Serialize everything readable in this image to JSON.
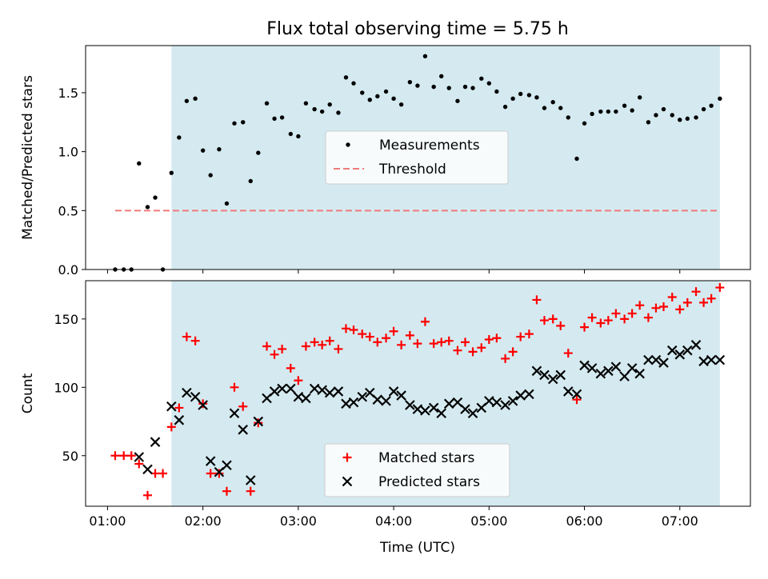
{
  "figure": {
    "title": "Flux total observing time = 5.75 h",
    "xlabel": "Time (UTC)",
    "x_ticks": [
      {
        "value": 1,
        "label": "01:00"
      },
      {
        "value": 2,
        "label": "02:00"
      },
      {
        "value": 3,
        "label": "03:00"
      },
      {
        "value": 4,
        "label": "04:00"
      },
      {
        "value": 5,
        "label": "05:00"
      },
      {
        "value": 6,
        "label": "06:00"
      },
      {
        "value": 7,
        "label": "07:00"
      }
    ],
    "xlim": [
      0.77,
      7.74
    ],
    "shade_range": [
      1.67,
      7.42
    ],
    "shade_color": "#d4eaf0"
  },
  "chart_data": [
    {
      "type": "scatter",
      "ylabel": "Matched/Predicted stars",
      "ylim": [
        0,
        1.9
      ],
      "y_ticks": [
        {
          "value": 0,
          "label": "0.0"
        },
        {
          "value": 0.5,
          "label": "0.5"
        },
        {
          "value": 1.0,
          "label": "1.0"
        },
        {
          "value": 1.5,
          "label": "1.5"
        }
      ],
      "legend": {
        "position": "center",
        "items": [
          {
            "label": "Measurements",
            "marker": "dot",
            "color": "#000000"
          },
          {
            "label": "Threshold",
            "marker": "dashed-line",
            "color": "#f07a7a"
          }
        ]
      },
      "threshold": {
        "value": 0.5,
        "x_range": [
          1.08,
          7.42
        ],
        "color": "#f07a7a"
      },
      "series": [
        {
          "name": "Measurements",
          "color": "#000000",
          "x": [
            1.08,
            1.17,
            1.25,
            1.33,
            1.42,
            1.5,
            1.58,
            1.67,
            1.75,
            1.83,
            1.92,
            2.0,
            2.08,
            2.17,
            2.25,
            2.33,
            2.42,
            2.5,
            2.58,
            2.67,
            2.75,
            2.83,
            2.92,
            3.0,
            3.08,
            3.17,
            3.25,
            3.33,
            3.42,
            3.5,
            3.58,
            3.67,
            3.75,
            3.83,
            3.92,
            4.0,
            4.08,
            4.17,
            4.25,
            4.33,
            4.42,
            4.5,
            4.58,
            4.67,
            4.75,
            4.83,
            4.92,
            5.0,
            5.08,
            5.17,
            5.25,
            5.33,
            5.42,
            5.5,
            5.58,
            5.67,
            5.75,
            5.83,
            5.92,
            6.0,
            6.08,
            6.17,
            6.25,
            6.33,
            6.42,
            6.5,
            6.58,
            6.67,
            6.75,
            6.83,
            6.92,
            7.0,
            7.08,
            7.17,
            7.25,
            7.33,
            7.42
          ],
          "y": [
            0.0,
            0.0,
            0.0,
            0.9,
            0.53,
            0.61,
            0.0,
            0.82,
            1.12,
            1.43,
            1.45,
            1.01,
            0.8,
            1.02,
            0.56,
            1.24,
            1.25,
            0.75,
            0.99,
            1.41,
            1.28,
            1.29,
            1.15,
            1.13,
            1.41,
            1.36,
            1.34,
            1.4,
            1.33,
            1.63,
            1.58,
            1.5,
            1.44,
            1.47,
            1.51,
            1.45,
            1.4,
            1.59,
            1.56,
            1.81,
            1.55,
            1.64,
            1.54,
            1.43,
            1.55,
            1.54,
            1.62,
            1.58,
            1.51,
            1.38,
            1.45,
            1.49,
            1.48,
            1.46,
            1.37,
            1.42,
            1.37,
            1.29,
            0.94,
            1.24,
            1.32,
            1.34,
            1.34,
            1.34,
            1.39,
            1.35,
            1.46,
            1.25,
            1.31,
            1.36,
            1.31,
            1.27,
            1.28,
            1.29,
            1.36,
            1.39,
            1.45
          ]
        }
      ]
    },
    {
      "type": "scatter",
      "ylabel": "Count",
      "ylim": [
        13,
        178
      ],
      "y_ticks": [
        {
          "value": 50,
          "label": "50"
        },
        {
          "value": 100,
          "label": "100"
        },
        {
          "value": 150,
          "label": "150"
        }
      ],
      "legend": {
        "position": "lower center",
        "items": [
          {
            "label": "Matched stars",
            "marker": "plus",
            "color": "#ff0000"
          },
          {
            "label": "Predicted stars",
            "marker": "cross",
            "color": "#000000"
          }
        ]
      },
      "series": [
        {
          "name": "Matched stars",
          "color": "#ff0000",
          "x": [
            1.08,
            1.17,
            1.25,
            1.33,
            1.42,
            1.5,
            1.58,
            1.67,
            1.75,
            1.83,
            1.92,
            2.0,
            2.08,
            2.17,
            2.25,
            2.33,
            2.42,
            2.5,
            2.58,
            2.67,
            2.75,
            2.83,
            2.92,
            3.0,
            3.08,
            3.17,
            3.25,
            3.33,
            3.42,
            3.5,
            3.58,
            3.67,
            3.75,
            3.83,
            3.92,
            4.0,
            4.08,
            4.17,
            4.25,
            4.33,
            4.42,
            4.5,
            4.58,
            4.67,
            4.75,
            4.83,
            4.92,
            5.0,
            5.08,
            5.17,
            5.25,
            5.33,
            5.42,
            5.5,
            5.58,
            5.67,
            5.75,
            5.83,
            5.92,
            6.0,
            6.08,
            6.17,
            6.25,
            6.33,
            6.42,
            6.5,
            6.58,
            6.67,
            6.75,
            6.83,
            6.92,
            7.0,
            7.08,
            7.17,
            7.25,
            7.33,
            7.42
          ],
          "y": [
            50,
            50,
            50,
            44,
            21,
            37,
            37,
            71,
            85,
            137,
            134,
            88,
            37,
            37,
            24,
            100,
            86,
            24,
            74,
            130,
            124,
            128,
            114,
            105,
            130,
            133,
            131,
            134,
            128,
            143,
            142,
            139,
            137,
            133,
            136,
            141,
            131,
            138,
            132,
            148,
            132,
            133,
            134,
            127,
            133,
            126,
            129,
            135,
            136,
            121,
            126,
            137,
            139,
            164,
            149,
            150,
            145,
            125,
            91,
            144,
            151,
            147,
            149,
            154,
            150,
            154,
            160,
            151,
            158,
            159,
            166,
            157,
            162,
            170,
            162,
            165,
            173
          ]
        },
        {
          "name": "Predicted stars",
          "color": "#000000",
          "x": [
            1.33,
            1.42,
            1.5,
            1.67,
            1.75,
            1.83,
            1.92,
            2.0,
            2.08,
            2.17,
            2.25,
            2.33,
            2.42,
            2.5,
            2.58,
            2.67,
            2.75,
            2.83,
            2.92,
            3.0,
            3.08,
            3.17,
            3.25,
            3.33,
            3.42,
            3.5,
            3.58,
            3.67,
            3.75,
            3.83,
            3.92,
            4.0,
            4.08,
            4.17,
            4.25,
            4.33,
            4.42,
            4.5,
            4.58,
            4.67,
            4.75,
            4.83,
            4.92,
            5.0,
            5.08,
            5.17,
            5.25,
            5.33,
            5.42,
            5.5,
            5.58,
            5.67,
            5.75,
            5.83,
            5.92,
            6.0,
            6.08,
            6.17,
            6.25,
            6.33,
            6.42,
            6.5,
            6.58,
            6.67,
            6.75,
            6.83,
            6.92,
            7.0,
            7.08,
            7.17,
            7.25,
            7.33,
            7.42
          ],
          "y": [
            49,
            40,
            60,
            86,
            76,
            96,
            93,
            87,
            46,
            38,
            43,
            81,
            69,
            32,
            75,
            92,
            97,
            99,
            99,
            93,
            92,
            99,
            98,
            96,
            97,
            88,
            89,
            93,
            96,
            91,
            90,
            97,
            94,
            87,
            84,
            83,
            85,
            81,
            88,
            89,
            84,
            81,
            85,
            90,
            89,
            87,
            90,
            94,
            95,
            112,
            109,
            106,
            109,
            97,
            95,
            116,
            114,
            110,
            112,
            115,
            108,
            114,
            110,
            120,
            120,
            118,
            127,
            124,
            127,
            131,
            119,
            120,
            120
          ]
        }
      ]
    }
  ]
}
